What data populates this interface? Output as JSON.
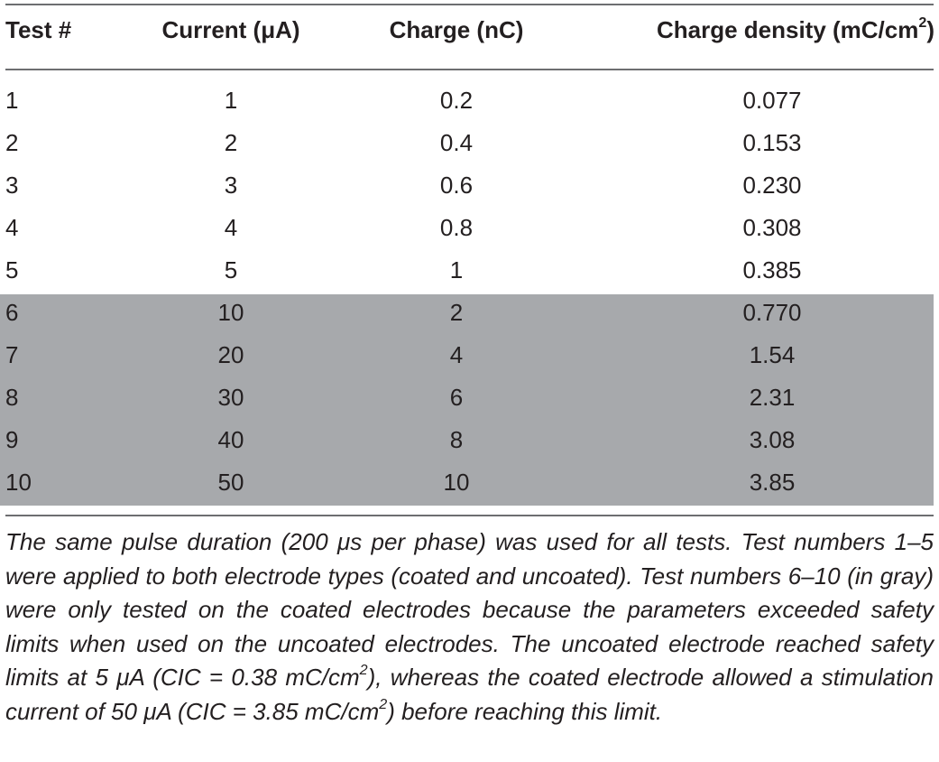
{
  "table": {
    "headers": [
      "Test #",
      "Current (μA)",
      "Charge (nC)",
      "Charge density (mC/cm",
      "2",
      ")"
    ],
    "rows": [
      {
        "test": "1",
        "current": "1",
        "charge": "0.2",
        "density": "0.077",
        "gray": false
      },
      {
        "test": "2",
        "current": "2",
        "charge": "0.4",
        "density": "0.153",
        "gray": false
      },
      {
        "test": "3",
        "current": "3",
        "charge": "0.6",
        "density": "0.230",
        "gray": false
      },
      {
        "test": "4",
        "current": "4",
        "charge": "0.8",
        "density": "0.308",
        "gray": false
      },
      {
        "test": "5",
        "current": "5",
        "charge": "1",
        "density": "0.385",
        "gray": false
      },
      {
        "test": "6",
        "current": "10",
        "charge": "2",
        "density": "0.770",
        "gray": true
      },
      {
        "test": "7",
        "current": "20",
        "charge": "4",
        "density": "1.54",
        "gray": true
      },
      {
        "test": "8",
        "current": "30",
        "charge": "6",
        "density": "2.31",
        "gray": true
      },
      {
        "test": "9",
        "current": "40",
        "charge": "8",
        "density": "3.08",
        "gray": true
      },
      {
        "test": "10",
        "current": "50",
        "charge": "10",
        "density": "3.85",
        "gray": true
      }
    ],
    "gray_color": "#a7a9ac"
  },
  "footnote": {
    "part1": "The same pulse duration (200 μs per phase) was used for all tests. Test numbers 1–5 were applied to both electrode types (coated and uncoated). Test numbers 6–10 (in gray) were only tested on the coated electrodes because the parameters exceeded safety limits when used on the uncoated electrodes. The uncoated electrode reached safety limits at 5 μA (CIC = 0.38 mC/cm",
    "sup1": "2",
    "part2": "), whereas the coated electrode allowed a stimulation current of 50 μA (CIC = 3.85 mC/cm",
    "sup2": "2",
    "part3": ") before reaching this limit."
  }
}
